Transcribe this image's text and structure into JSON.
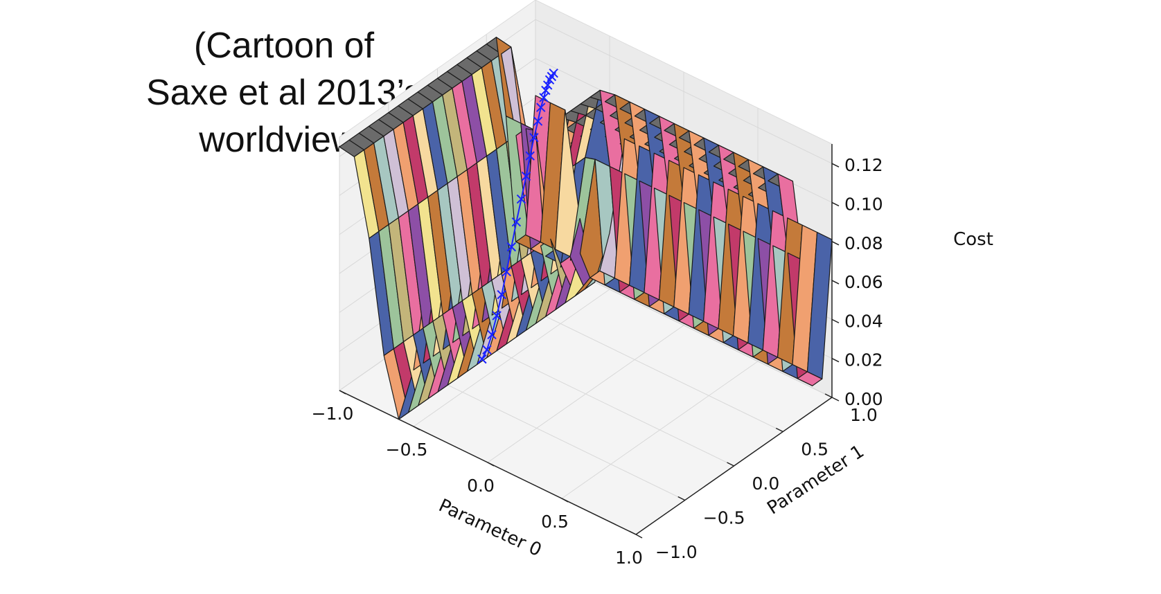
{
  "slide": {
    "title_lines": [
      "(Cartoon of",
      "Saxe et al 2013’s",
      "worldview)"
    ]
  },
  "chart_data": {
    "type": "surface3d",
    "title": "(Cartoon of Saxe et al 2013’s worldview)",
    "xlabel": "Parameter 0",
    "ylabel": "Parameter 1",
    "zlabel": "Cost",
    "xlim": [
      -1.0,
      1.0
    ],
    "ylim": [
      -1.0,
      1.0
    ],
    "zlim": [
      0.0,
      0.13
    ],
    "x_ticks": [
      "−1.0",
      "−0.5",
      "0.0",
      "0.5",
      "1.0"
    ],
    "y_ticks": [
      "−1.0",
      "−0.5",
      "0.0",
      "0.5",
      "1.0"
    ],
    "z_ticks": [
      "0.00",
      "0.02",
      "0.04",
      "0.06",
      "0.08",
      "0.10",
      "0.12"
    ],
    "grid": true,
    "surface": {
      "description_of_shape": "flat plateau near cost 0.125 over most of the domain, dropping to valleys near zero along the edges Parameter 0 = -0.6 and Parameter 1 = 0.85",
      "grid_resolution": 20,
      "plateau_cost": 0.125,
      "plateau_color": "#6b6b6b",
      "palette": [
        "#4a63a8",
        "#f2e38f",
        "#c23a6a",
        "#e96fa0",
        "#cfc0d6",
        "#9dc49b",
        "#c47a3a",
        "#f7d9a0",
        "#8d4fa6",
        "#f0a070",
        "#c3b57a",
        "#a7c7c1"
      ]
    },
    "series": [
      {
        "name": "",
        "type": "scatter3d",
        "color": "#1a22ff",
        "marker": "x",
        "points": [
          {
            "x": -0.6,
            "y": -0.15,
            "z": 0.001
          },
          {
            "x": -0.6,
            "y": -0.1,
            "z": 0.004
          },
          {
            "x": -0.6,
            "y": -0.05,
            "z": 0.01
          },
          {
            "x": -0.6,
            "y": 0.0,
            "z": 0.018
          },
          {
            "x": -0.6,
            "y": 0.05,
            "z": 0.027
          },
          {
            "x": -0.6,
            "y": 0.1,
            "z": 0.037
          },
          {
            "x": -0.6,
            "y": 0.15,
            "z": 0.048
          },
          {
            "x": -0.6,
            "y": 0.2,
            "z": 0.059
          },
          {
            "x": -0.6,
            "y": 0.25,
            "z": 0.069
          },
          {
            "x": -0.6,
            "y": 0.3,
            "z": 0.079
          },
          {
            "x": -0.6,
            "y": 0.34,
            "z": 0.088
          },
          {
            "x": -0.6,
            "y": 0.38,
            "z": 0.096
          },
          {
            "x": -0.6,
            "y": 0.42,
            "z": 0.103
          },
          {
            "x": -0.6,
            "y": 0.45,
            "z": 0.109
          },
          {
            "x": -0.6,
            "y": 0.48,
            "z": 0.113
          },
          {
            "x": -0.6,
            "y": 0.5,
            "z": 0.116
          },
          {
            "x": -0.6,
            "y": 0.52,
            "z": 0.118
          },
          {
            "x": -0.6,
            "y": 0.54,
            "z": 0.12
          },
          {
            "x": -0.6,
            "y": 0.56,
            "z": 0.121
          },
          {
            "x": -0.6,
            "y": 0.58,
            "z": 0.122
          }
        ]
      }
    ]
  }
}
